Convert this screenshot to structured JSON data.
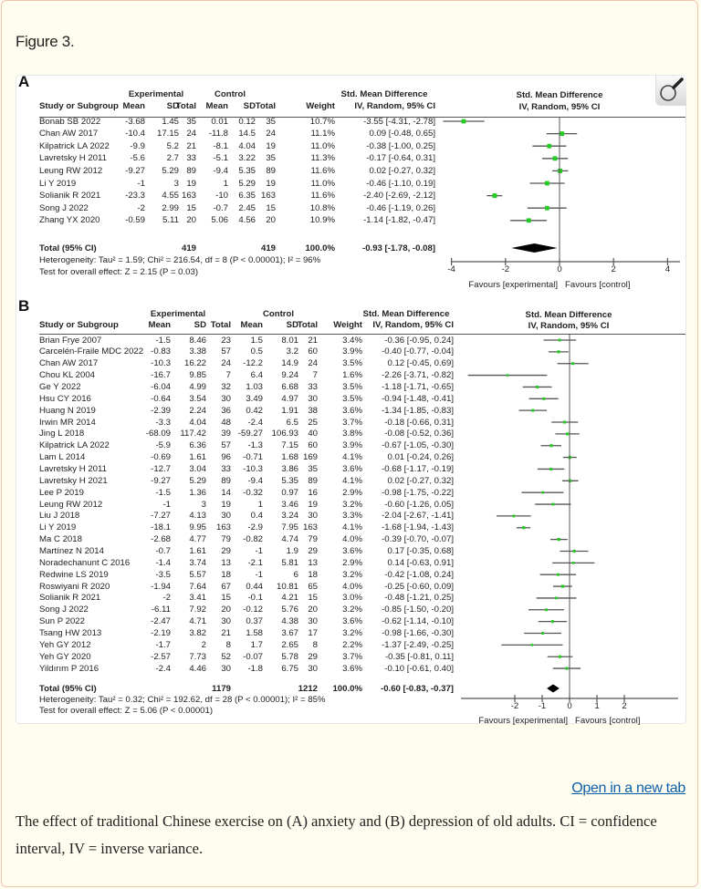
{
  "figure_label": "Figure 3.",
  "open_link": "Open in a new tab",
  "caption": "The effect of traditional Chinese exercise on (A) anxiety and (B) depression of old adults. CI = confidence interval, IV = inverse variance.",
  "icons": {
    "zoom": "magnifier-icon"
  },
  "colors": {
    "point": "#22cc22",
    "whisker": "#555555",
    "link": "#0b5fa8",
    "background": "#fffdf0"
  },
  "chart_data": [
    {
      "type": "forest",
      "label": "A",
      "group_headers": {
        "experimental": "Experimental",
        "control": "Control",
        "smd": "Std. Mean Difference",
        "smd_plot": "Std. Mean Difference"
      },
      "columns": [
        "Study or Subgroup",
        "Mean",
        "SD",
        "Total",
        "Mean",
        "SD",
        "Total",
        "Weight",
        "IV, Random, 95% CI"
      ],
      "plot_subheader": "IV, Random, 95% CI",
      "studies": [
        [
          "Bonab SB 2022",
          "-3.68",
          "1.45",
          "35",
          "0.01",
          "0.12",
          "35",
          "10.7%",
          "-3.55 [-4.31, -2.78]"
        ],
        [
          "Chan AW 2017",
          "-10.4",
          "17.15",
          "24",
          "-11.8",
          "14.5",
          "24",
          "11.1%",
          "0.09 [-0.48, 0.65]"
        ],
        [
          "Kilpatrick LA 2022",
          "-9.9",
          "5.2",
          "21",
          "-8.1",
          "4.04",
          "19",
          "11.0%",
          "-0.38 [-1.00, 0.25]"
        ],
        [
          "Lavretsky H 2011",
          "-5.6",
          "2.7",
          "33",
          "-5.1",
          "3.22",
          "35",
          "11.3%",
          "-0.17 [-0.64, 0.31]"
        ],
        [
          "Leung RW  2012",
          "-9.27",
          "5.29",
          "89",
          "-9.4",
          "5.35",
          "89",
          "11.6%",
          "0.02 [-0.27, 0.32]"
        ],
        [
          "Li Y 2019",
          "-1",
          "3",
          "19",
          "1",
          "5.29",
          "19",
          "11.0%",
          "-0.46 [-1.10, 0.19]"
        ],
        [
          "Solianik R 2021",
          "-23.3",
          "4.55",
          "163",
          "-10",
          "6.35",
          "163",
          "11.6%",
          "-2.40 [-2.69, -2.12]"
        ],
        [
          "Song J  2022",
          "-2",
          "2.99",
          "15",
          "-0.7",
          "2.45",
          "15",
          "10.8%",
          "-0.46 [-1.19, 0.26]"
        ],
        [
          "Zhang YX 2020",
          "-0.59",
          "5.11",
          "20",
          "5.06",
          "4.56",
          "20",
          "10.9%",
          "-1.14 [-1.82, -0.47]"
        ]
      ],
      "total": {
        "label": "Total (95% CI)",
        "exp_n": "419",
        "ctl_n": "419",
        "weight": "100.0%",
        "ci": "-0.93 [-1.78, -0.08]"
      },
      "heterogeneity": "Heterogeneity: Tau² = 1.59; Chi² = 216.54, df = 8 (P < 0.00001); I² = 96%",
      "overall_test": "Test for overall effect: Z = 2.15 (P = 0.03)",
      "x_ticks": [
        "-4",
        "-2",
        "0",
        "2",
        "4"
      ],
      "xlim": [
        -4,
        4
      ],
      "favours_left": "Favours [experimental]",
      "favours_right": "Favours [control]"
    },
    {
      "type": "forest",
      "label": "B",
      "group_headers": {
        "experimental": "Experimental",
        "control": "Control",
        "smd": "Std. Mean Difference",
        "smd_plot": "Std. Mean Difference"
      },
      "columns": [
        "Study or Subgroup",
        "Mean",
        "SD",
        "Total",
        "Mean",
        "SD",
        "Total",
        "Weight",
        "IV, Random, 95% CI"
      ],
      "plot_subheader": "IV, Random, 95% CI",
      "studies": [
        [
          "Brian Frye 2007",
          "-1.5",
          "8.46",
          "23",
          "1.5",
          "8.01",
          "21",
          "3.4%",
          "-0.36 [-0.95, 0.24]"
        ],
        [
          "Carcelén-Fraile MDC 2022",
          "-0.83",
          "3.38",
          "57",
          "0.5",
          "3.2",
          "60",
          "3.9%",
          "-0.40 [-0.77, -0.04]"
        ],
        [
          "Chan AW 2017",
          "-10.3",
          "16.22",
          "24",
          "-12.2",
          "14.9",
          "24",
          "3.5%",
          "0.12 [-0.45, 0.69]"
        ],
        [
          "Chou KL 2004",
          "-16.7",
          "9.85",
          "7",
          "6.4",
          "9.24",
          "7",
          "1.6%",
          "-2.26 [-3.71, -0.82]"
        ],
        [
          "Ge Y 2022",
          "-6.04",
          "4.99",
          "32",
          "1.03",
          "6.68",
          "33",
          "3.5%",
          "-1.18 [-1.71, -0.65]"
        ],
        [
          "Hsu CY 2016",
          "-0.64",
          "3.54",
          "30",
          "3.49",
          "4.97",
          "30",
          "3.5%",
          "-0.94 [-1.48, -0.41]"
        ],
        [
          "Huang N 2019",
          "-2.39",
          "2.24",
          "36",
          "0.42",
          "1.91",
          "38",
          "3.6%",
          "-1.34 [-1.85, -0.83]"
        ],
        [
          "Irwin MR 2014",
          "-3.3",
          "4.04",
          "48",
          "-2.4",
          "6.5",
          "25",
          "3.7%",
          "-0.18 [-0.66, 0.31]"
        ],
        [
          "Jing L 2018",
          "-68.09",
          "117.42",
          "39",
          "-59.27",
          "106.93",
          "40",
          "3.8%",
          "-0.08 [-0.52, 0.36]"
        ],
        [
          "Kilpatrick LA 2022",
          "-5.9",
          "6.36",
          "57",
          "-1.3",
          "7.15",
          "60",
          "3.9%",
          "-0.67 [-1.05, -0.30]"
        ],
        [
          "Lam L  2014",
          "-0.69",
          "1.61",
          "96",
          "-0.71",
          "1.68",
          "169",
          "4.1%",
          "0.01 [-0.24, 0.26]"
        ],
        [
          "Lavretsky H 2011",
          "-12.7",
          "3.04",
          "33",
          "-10.3",
          "3.86",
          "35",
          "3.6%",
          "-0.68 [-1.17, -0.19]"
        ],
        [
          "Lavretsky H 2021",
          "-9.27",
          "5.29",
          "89",
          "-9.4",
          "5.35",
          "89",
          "4.1%",
          "0.02 [-0.27, 0.32]"
        ],
        [
          "Lee P 2019",
          "-1.5",
          "1.36",
          "14",
          "-0.32",
          "0.97",
          "16",
          "2.9%",
          "-0.98 [-1.75, -0.22]"
        ],
        [
          "Leung RW  2012",
          "-1",
          "3",
          "19",
          "1",
          "3.46",
          "19",
          "3.2%",
          "-0.60 [-1.26, 0.05]"
        ],
        [
          "Liu J  2018",
          "-7.27",
          "4.13",
          "30",
          "0.4",
          "3.24",
          "30",
          "3.3%",
          "-2.04 [-2.67, -1.41]"
        ],
        [
          "Li Y 2019",
          "-18.1",
          "9.95",
          "163",
          "-2.9",
          "7.95",
          "163",
          "4.1%",
          "-1.68 [-1.94, -1.43]"
        ],
        [
          "Ma C 2018",
          "-2.68",
          "4.77",
          "79",
          "-0.82",
          "4.74",
          "79",
          "4.0%",
          "-0.39 [-0.70, -0.07]"
        ],
        [
          "Martínez N 2014",
          "-0.7",
          "1.61",
          "29",
          "-1",
          "1.9",
          "29",
          "3.6%",
          "0.17 [-0.35, 0.68]"
        ],
        [
          "Noradechanunt C 2016",
          "-1.4",
          "3.74",
          "13",
          "-2.1",
          "5.81",
          "13",
          "2.9%",
          "0.14 [-0.63, 0.91]"
        ],
        [
          "Redwine LS  2019",
          "-3.5",
          "5.57",
          "18",
          "-1",
          "6",
          "18",
          "3.2%",
          "-0.42 [-1.08, 0.24]"
        ],
        [
          "Roswiyani R 2020",
          "-1.94",
          "7.64",
          "67",
          "0.44",
          "10.81",
          "65",
          "4.0%",
          "-0.25 [-0.60, 0.09]"
        ],
        [
          "Solianik R 2021",
          "-2",
          "3.41",
          "15",
          "-0.1",
          "4.21",
          "15",
          "3.0%",
          "-0.48 [-1.21, 0.25]"
        ],
        [
          "Song J  2022",
          "-6.11",
          "7.92",
          "20",
          "-0.12",
          "5.76",
          "20",
          "3.2%",
          "-0.85 [-1.50, -0.20]"
        ],
        [
          "Sun P 2022",
          "-2.47",
          "4.71",
          "30",
          "0.37",
          "4.38",
          "30",
          "3.6%",
          "-0.62 [-1.14, -0.10]"
        ],
        [
          "Tsang HW 2013",
          "-2.19",
          "3.82",
          "21",
          "1.58",
          "3.67",
          "17",
          "3.2%",
          "-0.98 [-1.66, -0.30]"
        ],
        [
          "Yeh GY 2012",
          "-1.7",
          "2",
          "8",
          "1.7",
          "2.65",
          "8",
          "2.2%",
          "-1.37 [-2.49, -0.25]"
        ],
        [
          "Yeh GY 2020",
          "-2.57",
          "7.73",
          "52",
          "-0.07",
          "5.78",
          "29",
          "3.7%",
          "-0.35 [-0.81, 0.11]"
        ],
        [
          "Yildırım P 2016",
          "-2.4",
          "4.46",
          "30",
          "-1.8",
          "6.75",
          "30",
          "3.6%",
          "-0.10 [-0.61, 0.40]"
        ]
      ],
      "total": {
        "label": "Total (95% CI)",
        "exp_n": "1179",
        "ctl_n": "1212",
        "weight": "100.0%",
        "ci": "-0.60 [-0.83, -0.37]"
      },
      "heterogeneity": "Heterogeneity: Tau² = 0.32; Chi² = 192.62, df = 28 (P < 0.00001); I² = 85%",
      "overall_test": "Test for overall effect: Z = 5.06 (P < 0.00001)",
      "x_ticks": [
        "-2",
        "-1",
        "0",
        "1",
        "2"
      ],
      "xlim": [
        -4,
        4
      ],
      "favours_left": "Favours [experimental]",
      "favours_right": "Favours [control]"
    }
  ]
}
